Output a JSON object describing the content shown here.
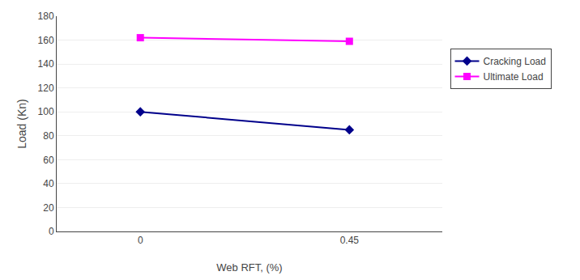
{
  "chart_data": {
    "type": "line",
    "xlabel": "Web RFT, (%)",
    "ylabel": "Load (Kn)",
    "x": [
      0,
      0.45
    ],
    "series": [
      {
        "name": "Cracking Load",
        "color": "#00008B",
        "marker": "diamond",
        "values": [
          100,
          85
        ]
      },
      {
        "name": "Ultimate Load",
        "color": "#FF00FF",
        "marker": "square",
        "values": [
          162,
          159
        ]
      }
    ],
    "xlim": [
      -0.18,
      0.65
    ],
    "xticks": [
      0,
      0.45
    ],
    "ylim": [
      0,
      180
    ],
    "yticks": [
      0,
      20,
      40,
      60,
      80,
      100,
      120,
      140,
      160,
      180
    ],
    "grid": "y",
    "legend": "right"
  }
}
